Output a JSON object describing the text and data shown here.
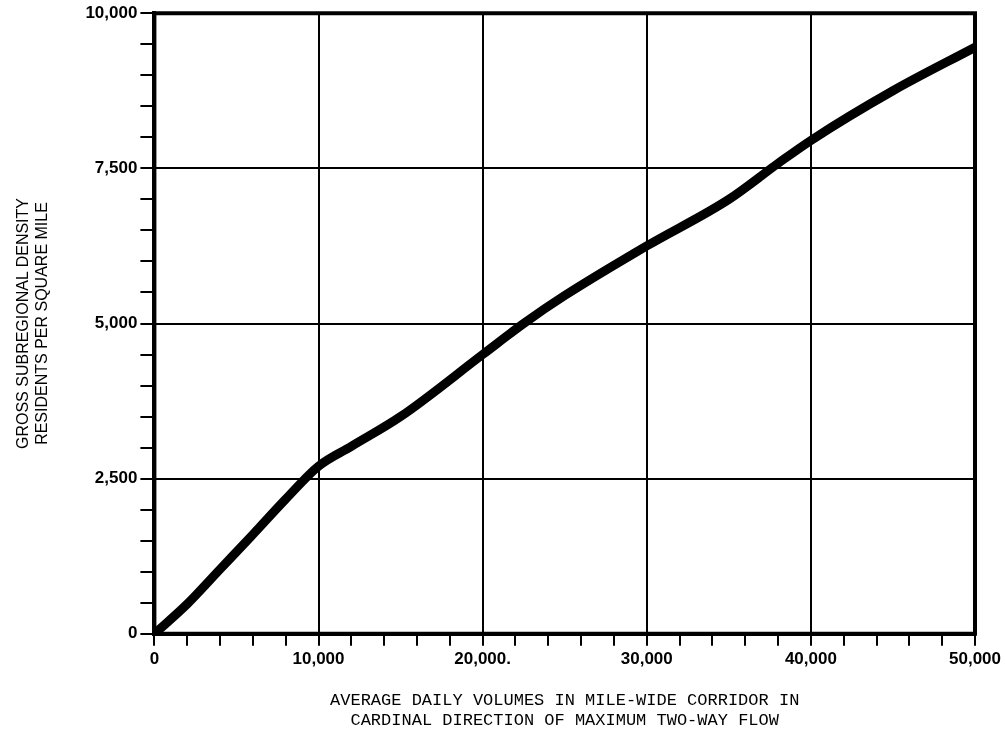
{
  "chart_data": {
    "type": "line",
    "xlabel": "AVERAGE DAILY VOLUMES IN MILE-WIDE CORRIDOR IN\nCARDINAL DIRECTION OF MAXIMUM TWO-WAY FLOW",
    "ylabel": "GROSS SUBREGIONAL DENSITY\nRESIDENTS PER SQUARE MILE",
    "x": [
      0,
      2000,
      4000,
      6000,
      8000,
      10000,
      12000,
      15000,
      20000,
      22500,
      25000,
      30000,
      35000,
      38000,
      40000,
      45000,
      50000
    ],
    "series": [
      {
        "color": "#000000",
        "values": [
          0,
          480,
          1040,
          1600,
          2170,
          2700,
          3020,
          3500,
          4500,
          5000,
          5450,
          6250,
          7000,
          7580,
          7950,
          8750,
          9450
        ]
      }
    ],
    "xlim": [
      0,
      50000
    ],
    "xticks": [
      {
        "value": 0,
        "label": "0"
      },
      {
        "value": 2000,
        "label": null
      },
      {
        "value": 4000,
        "label": null
      },
      {
        "value": 6000,
        "label": null
      },
      {
        "value": 8000,
        "label": null
      },
      {
        "value": 10000,
        "label": "10,000"
      },
      {
        "value": 12000,
        "label": null
      },
      {
        "value": 14000,
        "label": null
      },
      {
        "value": 16000,
        "label": null
      },
      {
        "value": 18000,
        "label": null
      },
      {
        "value": 20000,
        "label": "20,000."
      },
      {
        "value": 22000,
        "label": null
      },
      {
        "value": 24000,
        "label": null
      },
      {
        "value": 26000,
        "label": null
      },
      {
        "value": 28000,
        "label": null
      },
      {
        "value": 30000,
        "label": "30,000"
      },
      {
        "value": 32000,
        "label": null
      },
      {
        "value": 34000,
        "label": null
      },
      {
        "value": 36000,
        "label": null
      },
      {
        "value": 38000,
        "label": null
      },
      {
        "value": 40000,
        "label": "40,000"
      },
      {
        "value": 42000,
        "label": null
      },
      {
        "value": 44000,
        "label": null
      },
      {
        "value": 46000,
        "label": null
      },
      {
        "value": 48000,
        "label": null
      },
      {
        "value": 50000,
        "label": "50,000"
      }
    ],
    "ylim": [
      0,
      10000
    ],
    "yticks": [
      {
        "value": 0,
        "label": "0"
      },
      {
        "value": 500,
        "label": null
      },
      {
        "value": 1000,
        "label": null
      },
      {
        "value": 1500,
        "label": null
      },
      {
        "value": 2000,
        "label": null
      },
      {
        "value": 2500,
        "label": "2,500"
      },
      {
        "value": 3000,
        "label": null
      },
      {
        "value": 3500,
        "label": null
      },
      {
        "value": 4000,
        "label": null
      },
      {
        "value": 4500,
        "label": null
      },
      {
        "value": 5000,
        "label": "5,000"
      },
      {
        "value": 5500,
        "label": null
      },
      {
        "value": 6000,
        "label": null
      },
      {
        "value": 6500,
        "label": null
      },
      {
        "value": 7000,
        "label": null
      },
      {
        "value": 7500,
        "label": "7,500"
      },
      {
        "value": 8000,
        "label": null
      },
      {
        "value": 8500,
        "label": null
      },
      {
        "value": 9000,
        "label": null
      },
      {
        "value": 9500,
        "label": null
      },
      {
        "value": 10000,
        "label": "10,000"
      }
    ],
    "grid": true,
    "legend": false,
    "marker": "none",
    "line_style": "solid"
  }
}
